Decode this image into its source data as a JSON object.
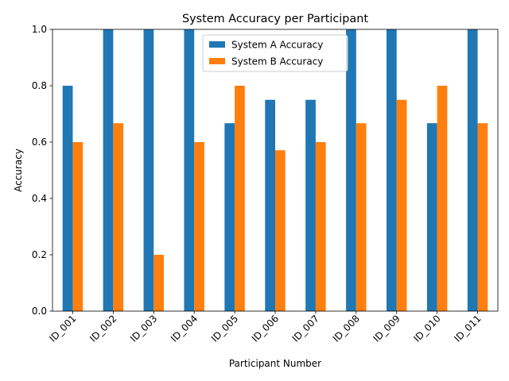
{
  "chart_data": {
    "type": "bar",
    "title": "System Accuracy per Participant",
    "xlabel": "Participant Number",
    "ylabel": "Accuracy",
    "categories": [
      "ID_001",
      "ID_002",
      "ID_003",
      "ID_004",
      "ID_005",
      "ID_006",
      "ID_007",
      "ID_008",
      "ID_009",
      "ID_010",
      "ID_011"
    ],
    "series": [
      {
        "name": "System A Accuracy",
        "color": "#1f77b4",
        "values": [
          0.8,
          1.0,
          1.0,
          1.0,
          0.667,
          0.75,
          0.75,
          1.0,
          1.0,
          0.667,
          1.0
        ]
      },
      {
        "name": "System B Accuracy",
        "color": "#ff7f0e",
        "values": [
          0.6,
          0.667,
          0.2,
          0.6,
          0.8,
          0.571,
          0.6,
          0.667,
          0.75,
          0.8,
          0.667
        ]
      }
    ],
    "ylim": [
      0,
      1.0
    ],
    "yticks": [
      "0.0",
      "0.2",
      "0.4",
      "0.6",
      "0.8",
      "1.0"
    ],
    "legend_position": "top-center",
    "grid": false,
    "xtick_rotation": 45
  }
}
